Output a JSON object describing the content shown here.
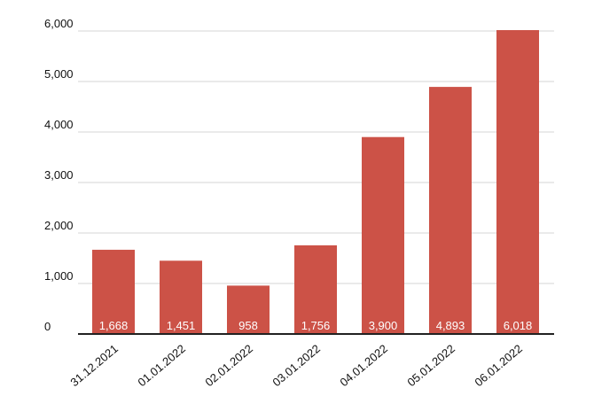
{
  "chart_data": {
    "type": "bar",
    "title": "",
    "xlabel": "",
    "ylabel": "",
    "categories": [
      "31.12.2021",
      "01.01.2022",
      "02.01.2022",
      "03.01.2022",
      "04.01.2022",
      "05.01.2022",
      "06.01.2022"
    ],
    "values": [
      1668,
      1451,
      958,
      1756,
      3900,
      4893,
      6018
    ],
    "data_labels": [
      "1,668",
      "1,451",
      "958",
      "1,756",
      "3,900",
      "4,893",
      "6,018"
    ],
    "yticks": [
      0,
      1000,
      2000,
      3000,
      4000,
      5000,
      6000
    ],
    "ytick_labels": [
      "0",
      "1,000",
      "2,000",
      "3,000",
      "4,000",
      "5,000",
      "6,000"
    ],
    "ylim": [
      0,
      6000
    ],
    "grid": true,
    "legend": "none",
    "bar_color": "#cc5247"
  }
}
